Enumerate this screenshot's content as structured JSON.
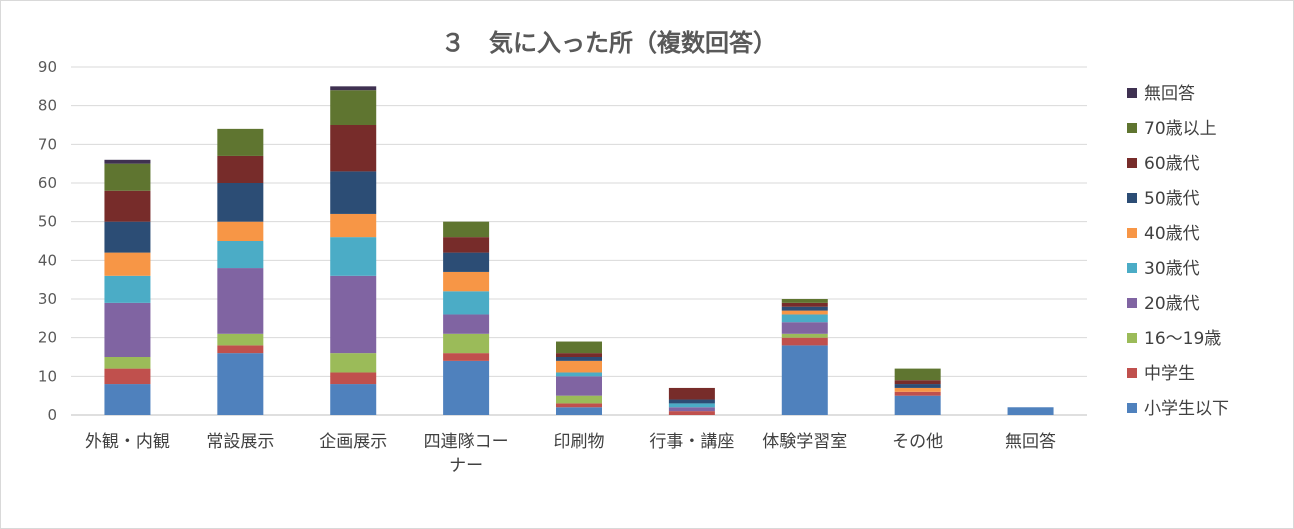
{
  "chart_data": {
    "type": "bar",
    "stacked": true,
    "title": "３　気に入った所（複数回答）",
    "ylim": [
      0,
      90
    ],
    "yticks": [
      0,
      10,
      20,
      30,
      40,
      50,
      60,
      70,
      80,
      90
    ],
    "grid": true,
    "legend_position": "right",
    "categories": [
      [
        "外観・内観"
      ],
      [
        "常設展示"
      ],
      [
        "企画展示"
      ],
      [
        "四連隊コー",
        "ナー"
      ],
      [
        "印刷物"
      ],
      [
        "行事・講座"
      ],
      [
        "体験学習室"
      ],
      [
        "その他"
      ],
      [
        "無回答"
      ]
    ],
    "series": [
      {
        "name": "小学生以下",
        "color": "#4f81bd",
        "values": [
          8,
          16,
          8,
          14,
          2,
          0,
          18,
          5,
          2
        ]
      },
      {
        "name": "中学生",
        "color": "#c0504d",
        "values": [
          4,
          2,
          3,
          2,
          1,
          1,
          2,
          1,
          0
        ]
      },
      {
        "name": "16～19歳",
        "color": "#9bbb59",
        "values": [
          3,
          3,
          5,
          5,
          2,
          0,
          1,
          0,
          0
        ]
      },
      {
        "name": "20歳代",
        "color": "#8064a2",
        "values": [
          14,
          17,
          20,
          5,
          5,
          1,
          3,
          0,
          0
        ]
      },
      {
        "name": "30歳代",
        "color": "#4bacc6",
        "values": [
          7,
          7,
          10,
          6,
          1,
          1,
          2,
          0,
          0
        ]
      },
      {
        "name": "40歳代",
        "color": "#f79646",
        "values": [
          6,
          5,
          6,
          5,
          3,
          0,
          1,
          1,
          0
        ]
      },
      {
        "name": "50歳代",
        "color": "#2c4d75",
        "values": [
          8,
          10,
          11,
          5,
          1,
          1,
          1,
          1,
          0
        ]
      },
      {
        "name": "60歳代",
        "color": "#772c2a",
        "values": [
          8,
          7,
          12,
          4,
          1,
          3,
          1,
          1,
          0
        ]
      },
      {
        "name": "70歳以上",
        "color": "#5f7530",
        "values": [
          7,
          7,
          9,
          4,
          3,
          0,
          1,
          3,
          0
        ]
      },
      {
        "name": "無回答",
        "color": "#3f3151",
        "values": [
          1,
          0,
          1,
          0,
          0,
          0,
          0,
          0,
          0
        ]
      }
    ]
  }
}
